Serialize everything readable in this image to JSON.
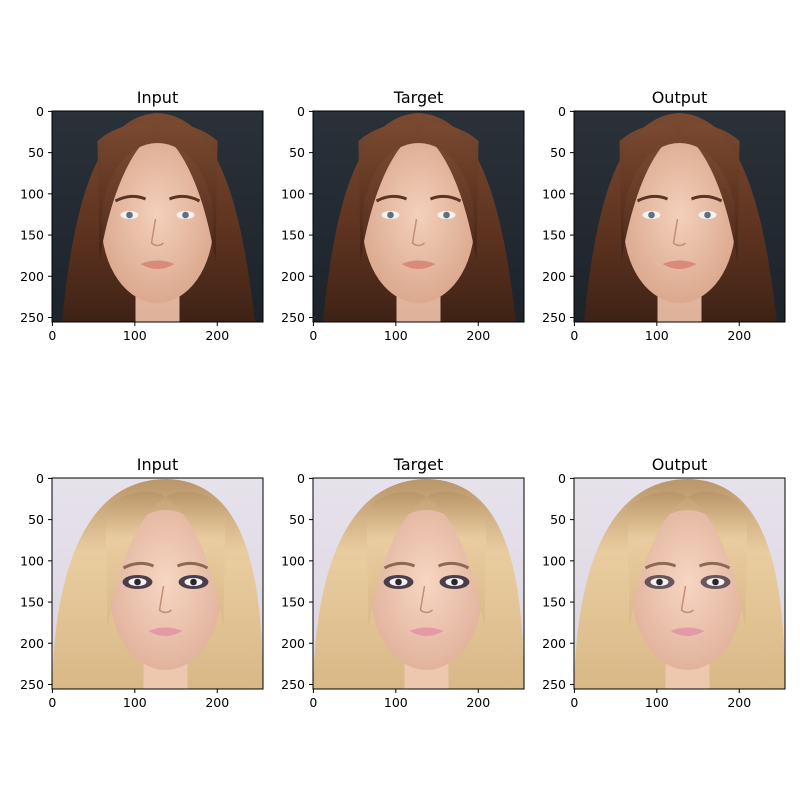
{
  "figure": {
    "rows": [
      {
        "panels": [
          {
            "title": "Input",
            "subject": "brunette"
          },
          {
            "title": "Target",
            "subject": "brunette"
          },
          {
            "title": "Output",
            "subject": "brunette"
          }
        ]
      },
      {
        "panels": [
          {
            "title": "Input",
            "subject": "blonde"
          },
          {
            "title": "Target",
            "subject": "blonde"
          },
          {
            "title": "Output",
            "subject": "blonde"
          }
        ]
      }
    ],
    "axes": {
      "x_ticks": [
        "0",
        "100",
        "200"
      ],
      "y_ticks": [
        "0",
        "50",
        "100",
        "150",
        "200",
        "250"
      ]
    },
    "palette": {
      "brunette": {
        "bg_top": "#2a3138",
        "bg_bottom": "#1d232a",
        "hair": "#6b3a24",
        "hair_dark": "#3e2216",
        "skin": "#e8bca2",
        "lips": "#d98a78",
        "eyes": "#5d7184"
      },
      "blonde": {
        "bg_top": "#e4e0ea",
        "bg_bottom": "#d8d2dc",
        "hair": "#e2c192",
        "hair_dark": "#9b7a55",
        "skin": "#efc7b1",
        "lips": "#e39aa6",
        "eyes": "#2a2630"
      }
    }
  }
}
